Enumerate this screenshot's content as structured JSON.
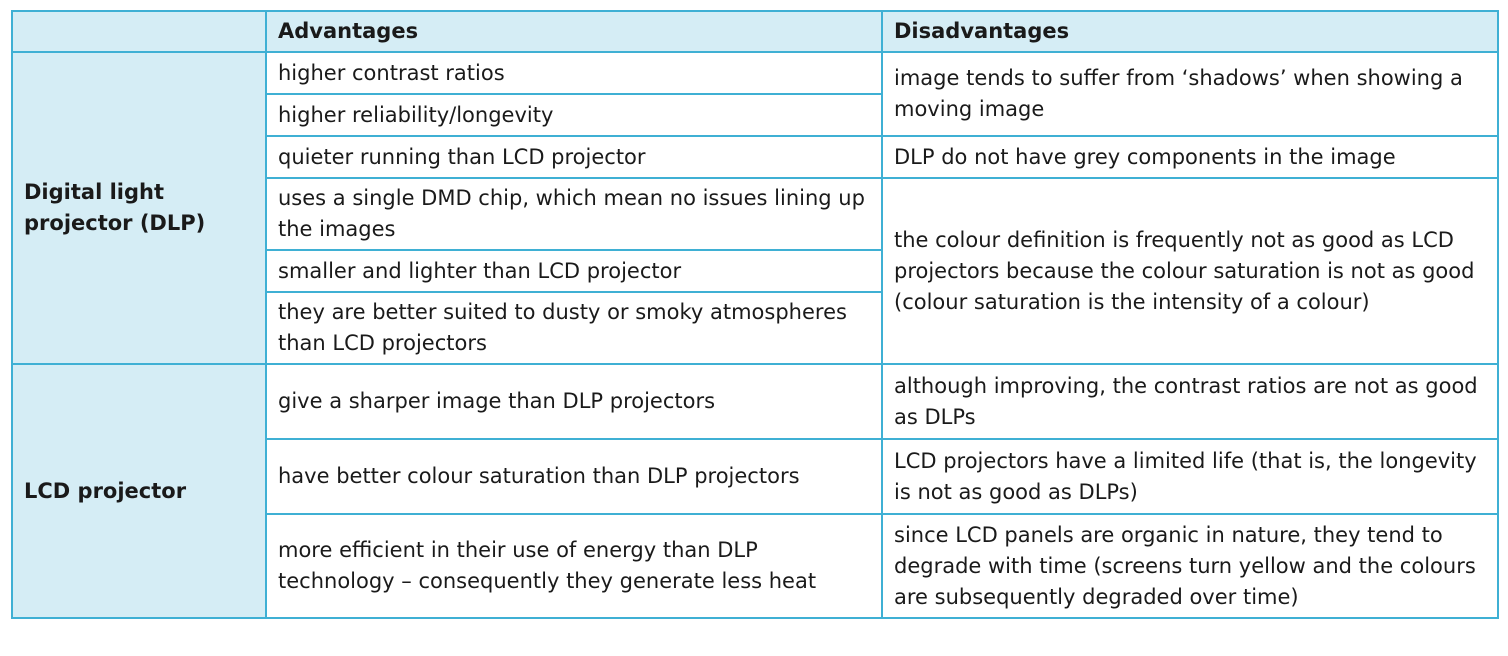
{
  "table": {
    "header": {
      "corner": "",
      "advantages": "Advantages",
      "disadvantages": "Disadvantages"
    },
    "dlp": {
      "label": "Digital light projector (DLP)",
      "advantages": [
        "higher contrast ratios",
        "higher reliability/longevity",
        "quieter running than LCD projector",
        "uses a single DMD chip, which mean no issues lining up the images",
        "smaller and lighter than LCD projector",
        "they are better suited to dusty or smoky atmospheres than LCD projectors"
      ],
      "disadvantages": [
        "image tends to suffer from ‘shadows’ when showing a moving image",
        "DLP do not have grey components in the image",
        "the colour definition is frequently not as good as LCD projectors because the colour saturation is not as good (colour saturation is the intensity of a colour)"
      ]
    },
    "lcd": {
      "label": "LCD projector",
      "advantages": [
        "give a sharper image than DLP projectors",
        "have better colour saturation than DLP projectors",
        "more efficient in their use of energy than DLP technology – consequently they generate less heat"
      ],
      "disadvantages": [
        "although improving, the contrast ratios are not as good as DLPs",
        "LCD projectors have a limited life (that is, the longevity is not as good as DLPs)",
        "since LCD panels are organic in nature, they tend to degrade with time (screens turn yellow and the colours are subsequently degraded over time)"
      ]
    }
  }
}
